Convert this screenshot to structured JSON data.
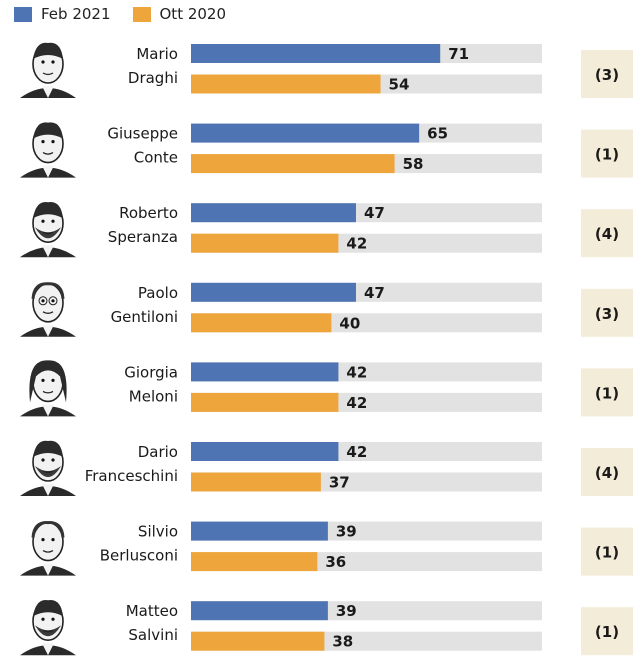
{
  "colors": {
    "feb": "#4f74b3",
    "ott": "#eea53c",
    "track": "#e2e2e2",
    "badge_bg": "#f3ecd8",
    "text": "#1a1a1a"
  },
  "legend": [
    {
      "label": "Feb 2021",
      "color": "#4f74b3"
    },
    {
      "label": "Ott 2020",
      "color": "#eea53c"
    }
  ],
  "chart_data": {
    "type": "bar",
    "orientation": "horizontal",
    "xlim": [
      0,
      100
    ],
    "series": [
      {
        "name": "Feb 2021",
        "values": [
          71,
          65,
          47,
          47,
          42,
          42,
          39,
          39
        ]
      },
      {
        "name": "Ott 2020",
        "values": [
          54,
          58,
          42,
          40,
          42,
          37,
          36,
          38
        ]
      }
    ],
    "rows": [
      {
        "first": "Mario",
        "last": "Draghi",
        "rank": "(3)",
        "icon": "mario-draghi-portrait"
      },
      {
        "first": "Giuseppe",
        "last": "Conte",
        "rank": "(1)",
        "icon": "giuseppe-conte-portrait"
      },
      {
        "first": "Roberto",
        "last": "Speranza",
        "rank": "(4)",
        "icon": "roberto-speranza-portrait"
      },
      {
        "first": "Paolo",
        "last": "Gentiloni",
        "rank": "(3)",
        "icon": "paolo-gentiloni-portrait"
      },
      {
        "first": "Giorgia",
        "last": "Meloni",
        "rank": "(1)",
        "icon": "giorgia-meloni-portrait"
      },
      {
        "first": "Dario",
        "last": "Franceschini",
        "rank": "(4)",
        "icon": "dario-franceschini-portrait"
      },
      {
        "first": "Silvio",
        "last": "Berlusconi",
        "rank": "(1)",
        "icon": "silvio-berlusconi-portrait"
      },
      {
        "first": "Matteo",
        "last": "Salvini",
        "rank": "(1)",
        "icon": "matteo-salvini-portrait"
      }
    ]
  }
}
